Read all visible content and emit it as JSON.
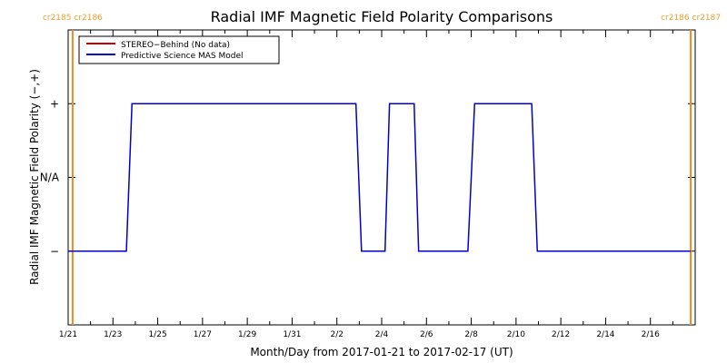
{
  "chart_data": {
    "type": "line",
    "title": "Radial IMF Magnetic Field Polarity Comparisons",
    "xlabel": "Month/Day from 2017-01-21 to 2017-02-17 (UT)",
    "ylabel": "Radial IMF Magnetic Field Polarity (−,+)",
    "x_range": [
      "2017-01-21",
      "2017-02-18"
    ],
    "x_ticks": [
      {
        "date": "2017-01-21",
        "label": "1/21"
      },
      {
        "date": "2017-01-23",
        "label": "1/23"
      },
      {
        "date": "2017-01-25",
        "label": "1/25"
      },
      {
        "date": "2017-01-27",
        "label": "1/27"
      },
      {
        "date": "2017-01-29",
        "label": "1/29"
      },
      {
        "date": "2017-01-31",
        "label": "1/31"
      },
      {
        "date": "2017-02-02",
        "label": "2/2"
      },
      {
        "date": "2017-02-04",
        "label": "2/4"
      },
      {
        "date": "2017-02-06",
        "label": "2/6"
      },
      {
        "date": "2017-02-08",
        "label": "2/8"
      },
      {
        "date": "2017-02-10",
        "label": "2/10"
      },
      {
        "date": "2017-02-12",
        "label": "2/12"
      },
      {
        "date": "2017-02-14",
        "label": "2/14"
      },
      {
        "date": "2017-02-16",
        "label": "2/16"
      }
    ],
    "y_levels": [
      {
        "label": "−",
        "value": -1
      },
      {
        "label": "N/A",
        "value": 0
      },
      {
        "label": "+",
        "value": 1
      }
    ],
    "ylim": [
      -2,
      2
    ],
    "legend_position": "top-left",
    "carrington_markers": [
      {
        "date": "2017-01-21.2",
        "labels": [
          "cr2185",
          "cr2186"
        ],
        "side": "left"
      },
      {
        "date": "2017-02-17.8",
        "labels": [
          "cr2186",
          "cr2187"
        ],
        "side": "right"
      }
    ],
    "series": [
      {
        "name": "STEREO−Behind (No data)",
        "color": "#cc0000",
        "points": []
      },
      {
        "name": "Predictive Science MAS Model",
        "color": "#0000cc",
        "points": [
          {
            "x": "2017-01-21.0",
            "y": -1
          },
          {
            "x": "2017-01-23.6",
            "y": -1
          },
          {
            "x": "2017-01-23.85",
            "y": 1
          },
          {
            "x": "2017-02-02.85",
            "y": 1
          },
          {
            "x": "2017-02-03.1",
            "y": -1
          },
          {
            "x": "2017-02-04.15",
            "y": -1
          },
          {
            "x": "2017-02-04.35",
            "y": 1
          },
          {
            "x": "2017-02-05.45",
            "y": 1
          },
          {
            "x": "2017-02-05.65",
            "y": -1
          },
          {
            "x": "2017-02-07.85",
            "y": -1
          },
          {
            "x": "2017-02-08.15",
            "y": 1
          },
          {
            "x": "2017-02-10.7",
            "y": 1
          },
          {
            "x": "2017-02-10.95",
            "y": -1
          },
          {
            "x": "2017-02-17.8",
            "y": -1
          }
        ]
      }
    ]
  }
}
